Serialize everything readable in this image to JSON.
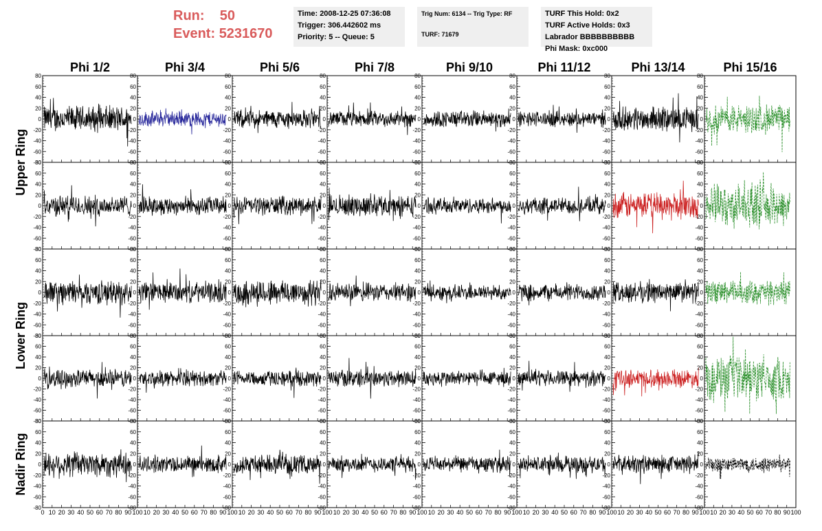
{
  "header": {
    "run_label": "Run:",
    "run_value": "50",
    "event_label": "Event:",
    "event_value": "5231670"
  },
  "info_time": {
    "time": "Time: 2008-12-25 07:36:08",
    "trigger": "Trigger: 306.442602 ms",
    "priority": "Priority: 5 -- Queue: 5"
  },
  "info_trig": {
    "trig": "Trig Num: 6134 -- Trig Type: RF",
    "turf": "TURF: 71679"
  },
  "info_turf": {
    "hold": "TURF This Hold: 0x2",
    "active": "TURF Active Holds: 0x3",
    "labrador": "Labrador BBBBBBBBBB",
    "mask": "Phi Mask: 0xc000"
  },
  "chart_data": {
    "type": "line",
    "columns": [
      "Phi 1/2",
      "Phi 3/4",
      "Phi 5/6",
      "Phi 7/8",
      "Phi 9/10",
      "Phi 11/12",
      "Phi 13/14",
      "Phi 15/16"
    ],
    "ring_labels": [
      "Upper Ring",
      "Lower Ring",
      "Nadir Ring"
    ],
    "panel_rows": 5,
    "xlim": [
      0,
      100
    ],
    "ylim": [
      -80,
      80
    ],
    "yticks": [
      "80",
      "60",
      "40",
      "20",
      "0",
      "-20",
      "-40",
      "-60",
      "-80"
    ],
    "xticks_panel": "0102030405060708090100",
    "xticks_last": "0 10 20 30 40 50 60 70 80 90 100",
    "trace_amplitude": [
      [
        20,
        12,
        14,
        12,
        13,
        12,
        18,
        22
      ],
      [
        16,
        14,
        14,
        16,
        12,
        13,
        20,
        32
      ],
      [
        18,
        16,
        20,
        14,
        12,
        13,
        16,
        18
      ],
      [
        14,
        12,
        12,
        14,
        12,
        12,
        14,
        34
      ],
      [
        20,
        13,
        14,
        12,
        12,
        13,
        14,
        12
      ]
    ],
    "trace_style": [
      [
        "black",
        "blue",
        "black",
        "black",
        "black",
        "black",
        "black",
        "green"
      ],
      [
        "black",
        "black",
        "black",
        "black",
        "black",
        "black",
        "red",
        "green"
      ],
      [
        "black",
        "black",
        "black",
        "black",
        "black",
        "black",
        "black",
        "green"
      ],
      [
        "black",
        "black",
        "black",
        "black",
        "black",
        "black",
        "red",
        "green"
      ],
      [
        "black",
        "black",
        "black",
        "black",
        "black",
        "black",
        "black",
        "black-dashed"
      ]
    ],
    "colors": {
      "black": "#000000",
      "blue": "#2a2a9c",
      "red": "#cc2222",
      "green": "#2a8f2a"
    }
  }
}
